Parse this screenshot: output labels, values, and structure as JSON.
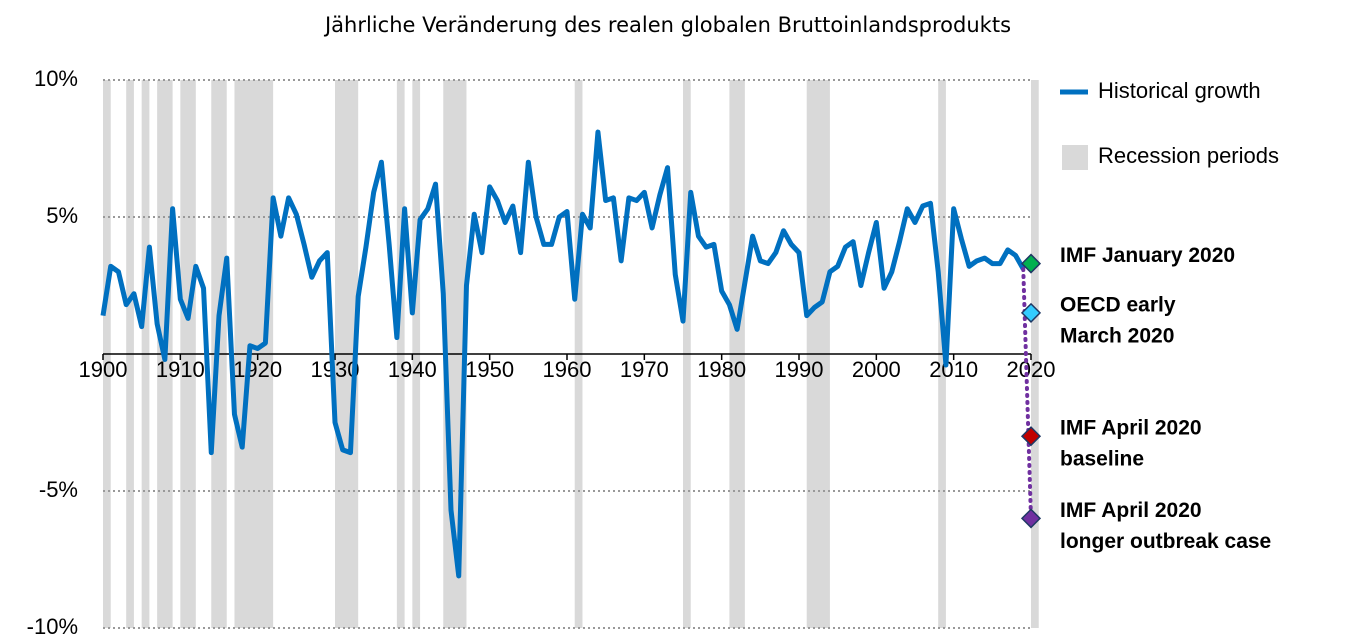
{
  "chart_data": {
    "type": "line",
    "title": "Jährliche Veränderung des realen globalen Bruttoinlandsprodukts",
    "x": [
      1900,
      1901,
      1902,
      1903,
      1904,
      1905,
      1906,
      1907,
      1908,
      1909,
      1910,
      1911,
      1912,
      1913,
      1914,
      1915,
      1916,
      1917,
      1918,
      1919,
      1920,
      1921,
      1922,
      1923,
      1924,
      1925,
      1926,
      1927,
      1928,
      1929,
      1930,
      1931,
      1932,
      1933,
      1934,
      1935,
      1936,
      1937,
      1938,
      1939,
      1940,
      1941,
      1942,
      1943,
      1944,
      1945,
      1946,
      1947,
      1948,
      1949,
      1950,
      1951,
      1952,
      1953,
      1954,
      1955,
      1956,
      1957,
      1958,
      1959,
      1960,
      1961,
      1962,
      1963,
      1964,
      1965,
      1966,
      1967,
      1968,
      1969,
      1970,
      1971,
      1972,
      1973,
      1974,
      1975,
      1976,
      1977,
      1978,
      1979,
      1980,
      1981,
      1982,
      1983,
      1984,
      1985,
      1986,
      1987,
      1988,
      1989,
      1990,
      1991,
      1992,
      1993,
      1994,
      1995,
      1996,
      1997,
      1998,
      1999,
      2000,
      2001,
      2002,
      2003,
      2004,
      2005,
      2006,
      2007,
      2008,
      2009,
      2010,
      2011,
      2012,
      2013,
      2014,
      2015,
      2016,
      2017,
      2018,
      2019
    ],
    "series": [
      {
        "name": "Historical growth",
        "color": "#0070c0",
        "values": [
          1.4,
          3.2,
          3.0,
          1.8,
          2.2,
          1.0,
          3.9,
          1.1,
          -0.2,
          5.3,
          2.0,
          1.3,
          3.2,
          2.4,
          -3.6,
          1.4,
          3.5,
          -2.2,
          -3.4,
          0.3,
          0.2,
          0.4,
          5.7,
          4.3,
          5.7,
          5.1,
          4.0,
          2.8,
          3.4,
          3.7,
          -2.5,
          -3.5,
          -3.6,
          2.1,
          3.9,
          5.9,
          7.0,
          4.0,
          0.6,
          5.3,
          1.5,
          4.9,
          5.3,
          6.2,
          2.2,
          -5.7,
          -8.1,
          2.5,
          5.1,
          3.7,
          6.1,
          5.6,
          4.8,
          5.4,
          3.7,
          7.0,
          5.0,
          4.0,
          4.0,
          5.0,
          5.2,
          2.0,
          5.1,
          4.6,
          8.1,
          5.6,
          5.7,
          3.4,
          5.7,
          5.6,
          5.9,
          4.6,
          5.8,
          6.8,
          2.9,
          1.2,
          5.9,
          4.3,
          3.9,
          4.0,
          2.3,
          1.8,
          0.9,
          2.6,
          4.3,
          3.4,
          3.3,
          3.7,
          4.5,
          4.0,
          3.7,
          1.4,
          1.7,
          1.9,
          3.0,
          3.2,
          3.9,
          4.1,
          2.5,
          3.7,
          4.8,
          2.4,
          3.0,
          4.1,
          5.3,
          4.8,
          5.4,
          5.5,
          3.0,
          -0.4,
          5.3,
          4.2,
          3.2,
          3.4,
          3.5,
          3.3,
          3.3,
          3.8,
          3.6,
          3.1
        ]
      }
    ],
    "recession_legend": "Recession periods",
    "recession_color": "#d9d9d9",
    "recessions": [
      [
        1900,
        1901
      ],
      [
        1903,
        1904
      ],
      [
        1905,
        1906
      ],
      [
        1907,
        1909
      ],
      [
        1910,
        1912
      ],
      [
        1914,
        1916
      ],
      [
        1917,
        1922
      ],
      [
        1930,
        1933
      ],
      [
        1938,
        1939
      ],
      [
        1940,
        1941
      ],
      [
        1944,
        1947
      ],
      [
        1961,
        1962
      ],
      [
        1975,
        1976
      ],
      [
        1981,
        1983
      ],
      [
        1991,
        1994
      ],
      [
        2008,
        2009
      ],
      [
        2020,
        2021
      ]
    ],
    "forecast_year": 2020,
    "forecasts": [
      {
        "label": [
          "IMF January 2020"
        ],
        "value": 3.3,
        "color": "#00b050",
        "text_color": "#00b050"
      },
      {
        "label": [
          "OECD early",
          "March 2020"
        ],
        "value": 1.5,
        "color": "#33ccff",
        "text_color": "#0070c0"
      },
      {
        "label": [
          "IMF April 2020",
          "baseline"
        ],
        "value": -3.0,
        "color": "#c00000",
        "text_color": "#c00000"
      },
      {
        "label": [
          "IMF April 2020",
          "longer outbreak case"
        ],
        "value": -6.0,
        "color": "#7030a0",
        "text_color": "#7030a0"
      }
    ],
    "xlim": [
      1900,
      2020
    ],
    "xticks": [
      1900,
      1910,
      1920,
      1930,
      1940,
      1950,
      1960,
      1970,
      1980,
      1990,
      2000,
      2010,
      2020
    ],
    "ylim": [
      -10,
      10
    ],
    "yticks": [
      {
        "value": -10,
        "label": "-10%"
      },
      {
        "value": -5,
        "label": "-5%"
      },
      {
        "value": 0,
        "label": ""
      },
      {
        "value": 5,
        "label": "5%"
      },
      {
        "value": 10,
        "label": "10%"
      }
    ],
    "grid": true
  }
}
